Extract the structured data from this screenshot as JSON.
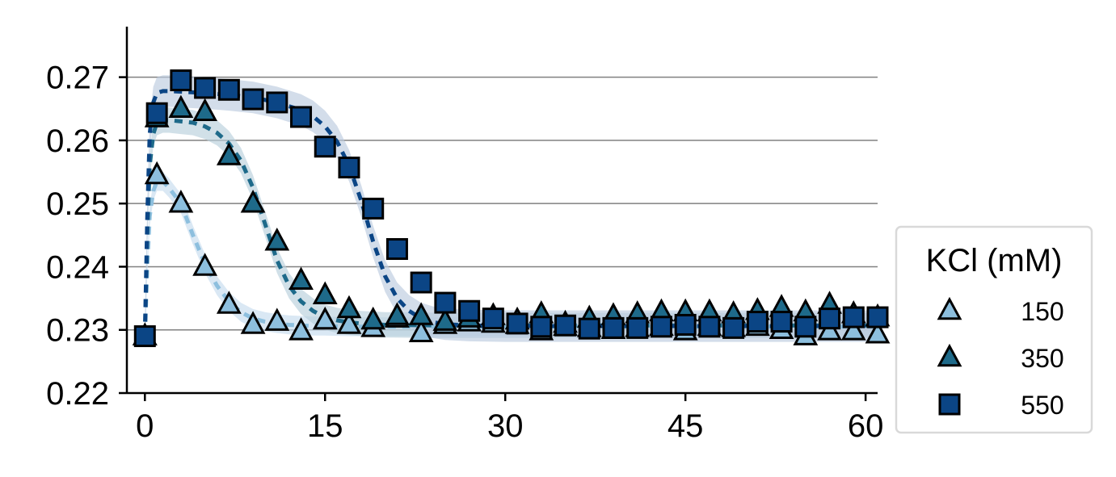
{
  "chart_data": {
    "type": "scatter",
    "title": "",
    "xlabel": "",
    "ylabel": "",
    "xlim": [
      -1.5,
      61
    ],
    "ylim": [
      0.22,
      0.278
    ],
    "xticks": [
      "0",
      "15",
      "30",
      "45",
      "60"
    ],
    "yticks": [
      "0.22",
      "0.23",
      "0.24",
      "0.25",
      "0.26",
      "0.27"
    ],
    "grid": "horizontal",
    "legend": {
      "title": "KCl (mM)",
      "placement": "outside-right-bottom"
    },
    "series": [
      {
        "name": "150",
        "marker": "triangle",
        "color": "#8dbfde",
        "x": [
          0,
          1,
          3,
          5,
          7,
          9,
          11,
          13,
          15,
          17,
          19,
          21,
          23,
          25,
          27,
          29,
          31,
          33,
          35,
          37,
          39,
          41,
          43,
          45,
          47,
          49,
          51,
          53,
          55,
          57,
          59,
          61
        ],
        "y": [
          0.229,
          0.2545,
          0.25,
          0.24,
          0.234,
          0.2308,
          0.2313,
          0.2298,
          0.2315,
          0.2308,
          0.2303,
          0.2318,
          0.2295,
          0.2308,
          0.2312,
          0.231,
          0.2308,
          0.2298,
          0.2305,
          0.2303,
          0.23,
          0.2303,
          0.2305,
          0.2298,
          0.2305,
          0.2303,
          0.2305,
          0.23,
          0.229,
          0.2298,
          0.2298,
          0.2293
        ],
        "fit": {
          "x": [
            0,
            0.2,
            0.4,
            0.7,
            1,
            1.5,
            2,
            3,
            4,
            5,
            6,
            7,
            8,
            9,
            10,
            11,
            12,
            13,
            14,
            15,
            17,
            20,
            25,
            30,
            40,
            50,
            61
          ],
          "y": [
            0.229,
            0.24,
            0.248,
            0.252,
            0.2535,
            0.2535,
            0.2525,
            0.25,
            0.245,
            0.2405,
            0.237,
            0.2345,
            0.2328,
            0.2318,
            0.2313,
            0.231,
            0.2308,
            0.2307,
            0.2306,
            0.2306,
            0.2305,
            0.2305,
            0.2305,
            0.2305,
            0.2305,
            0.2305,
            0.2305
          ],
          "band": 0.0015,
          "band_color": "#c6dcee"
        }
      },
      {
        "name": "350",
        "marker": "triangle",
        "color": "#1e6a8a",
        "x": [
          0,
          1,
          3,
          5,
          7,
          9,
          11,
          13,
          15,
          17,
          19,
          21,
          23,
          25,
          27,
          29,
          31,
          33,
          35,
          37,
          39,
          41,
          43,
          45,
          47,
          49,
          51,
          53,
          55,
          57,
          59,
          61
        ],
        "y": [
          0.229,
          0.2635,
          0.265,
          0.2645,
          0.2575,
          0.25,
          0.244,
          0.2378,
          0.2355,
          0.2333,
          0.2315,
          0.2322,
          0.2322,
          0.2313,
          0.2318,
          0.2322,
          0.2315,
          0.2325,
          0.231,
          0.2318,
          0.2322,
          0.2325,
          0.2328,
          0.2328,
          0.2328,
          0.2325,
          0.233,
          0.2335,
          0.2328,
          0.234,
          0.2325,
          0.232
        ],
        "fit": {
          "x": [
            0,
            0.2,
            0.4,
            0.7,
            1,
            1.5,
            2,
            3,
            4,
            5,
            6,
            7,
            8,
            9,
            10,
            11,
            12,
            13,
            14,
            15,
            16,
            17,
            18,
            20,
            25,
            30,
            40,
            50,
            61
          ],
          "y": [
            0.229,
            0.245,
            0.256,
            0.261,
            0.2628,
            0.2632,
            0.2632,
            0.263,
            0.2628,
            0.2622,
            0.2612,
            0.2595,
            0.2568,
            0.2525,
            0.2468,
            0.241,
            0.237,
            0.2345,
            0.233,
            0.232,
            0.2315,
            0.2312,
            0.231,
            0.2308,
            0.2307,
            0.2307,
            0.2307,
            0.2307,
            0.2307
          ],
          "band": 0.002,
          "band_color": "#b9cfdc"
        }
      },
      {
        "name": "550",
        "marker": "square",
        "color": "#0b4585",
        "x": [
          0,
          1,
          3,
          5,
          7,
          9,
          11,
          13,
          15,
          17,
          19,
          21,
          23,
          25,
          27,
          29,
          31,
          33,
          35,
          37,
          39,
          41,
          43,
          45,
          47,
          49,
          51,
          53,
          55,
          57,
          59,
          61
        ],
        "y": [
          0.229,
          0.2643,
          0.2695,
          0.2683,
          0.268,
          0.2665,
          0.266,
          0.2637,
          0.259,
          0.2557,
          0.2492,
          0.2428,
          0.2375,
          0.2343,
          0.233,
          0.2318,
          0.231,
          0.2305,
          0.2307,
          0.2302,
          0.2303,
          0.2303,
          0.2305,
          0.2308,
          0.2305,
          0.2303,
          0.2313,
          0.2313,
          0.2305,
          0.2318,
          0.232,
          0.232
        ],
        "fit": {
          "x": [
            0,
            0.2,
            0.4,
            0.7,
            1,
            1.5,
            2,
            3,
            5,
            7,
            9,
            11,
            13,
            14,
            15,
            16,
            17,
            18,
            19,
            20,
            21,
            22,
            23,
            24,
            25,
            27,
            30,
            40,
            50,
            61
          ],
          "y": [
            0.229,
            0.248,
            0.261,
            0.266,
            0.2675,
            0.2678,
            0.2678,
            0.2677,
            0.2675,
            0.2672,
            0.2668,
            0.266,
            0.2648,
            0.2638,
            0.2622,
            0.2598,
            0.256,
            0.2505,
            0.244,
            0.2385,
            0.235,
            0.233,
            0.2318,
            0.2312,
            0.2309,
            0.2307,
            0.2306,
            0.2306,
            0.2306,
            0.2306
          ],
          "band": 0.0025,
          "band_color": "#bccbdf"
        }
      }
    ]
  }
}
